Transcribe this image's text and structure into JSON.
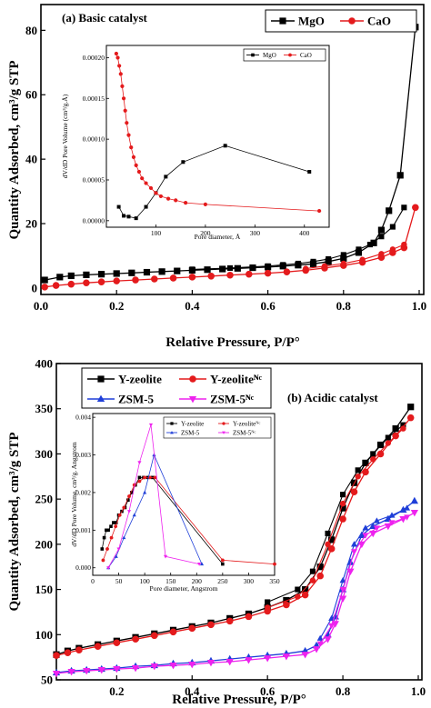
{
  "chart_data": [
    {
      "type": "line",
      "title": "(a) Basic catalyst",
      "xlabel": "Relative Pressure, P/P°",
      "ylabel": "Quantity Adsorbed, cm³/g STP",
      "xlim": [
        0.0,
        1.0
      ],
      "ylim": [
        -2,
        88
      ],
      "x_ticks": [
        "0.0",
        "0.2",
        "0.4",
        "0.6",
        "0.8",
        "1.0"
      ],
      "y_ticks": [
        "0",
        "20",
        "40",
        "60",
        "80"
      ],
      "legend_position": "top-right",
      "series": [
        {
          "name": "MgO",
          "color": "#000000",
          "marker": "square",
          "x": [
            0.01,
            0.05,
            0.08,
            0.12,
            0.16,
            0.2,
            0.24,
            0.28,
            0.32,
            0.36,
            0.4,
            0.44,
            0.48,
            0.52,
            0.56,
            0.6,
            0.64,
            0.68,
            0.72,
            0.76,
            0.8,
            0.84,
            0.88,
            0.9,
            0.92,
            0.95,
            0.99
          ],
          "y": [
            2.5,
            3.4,
            3.8,
            4.1,
            4.3,
            4.5,
            4.7,
            4.9,
            5.1,
            5.3,
            5.5,
            5.7,
            5.9,
            6.1,
            6.3,
            6.5,
            6.8,
            7.1,
            7.5,
            8.2,
            9.2,
            11,
            14,
            18,
            24,
            35,
            81
          ],
          "desorption_x": [
            0.96,
            0.93,
            0.9,
            0.87,
            0.84,
            0.8,
            0.76,
            0.72,
            0.68,
            0.64,
            0.6,
            0.5,
            0.4
          ],
          "desorption_y": [
            25,
            19,
            16,
            13.5,
            12,
            10.3,
            9,
            8.2,
            7.6,
            7.2,
            6.8,
            6.2,
            5.8
          ]
        },
        {
          "name": "CaO",
          "color": "#e41a1c",
          "marker": "circle",
          "x": [
            0.01,
            0.04,
            0.08,
            0.12,
            0.16,
            0.2,
            0.25,
            0.3,
            0.35,
            0.4,
            0.45,
            0.5,
            0.55,
            0.6,
            0.65,
            0.7,
            0.75,
            0.8,
            0.85,
            0.9,
            0.93,
            0.96,
            0.99
          ],
          "y": [
            0.3,
            0.8,
            1.2,
            1.6,
            1.9,
            2.2,
            2.5,
            2.8,
            3.1,
            3.4,
            3.7,
            4.0,
            4.3,
            4.6,
            5.0,
            5.5,
            6.2,
            7.0,
            8.0,
            9.5,
            11,
            12.5,
            25
          ],
          "desorption_x": [
            0.96,
            0.93,
            0.9,
            0.85,
            0.8,
            0.75,
            0.7
          ],
          "desorption_y": [
            13.5,
            12,
            10.6,
            8.8,
            7.6,
            6.8,
            6.0
          ]
        }
      ],
      "inset": {
        "xlabel": "Pore diameter, Å",
        "ylabel": "dV/dD Pore Volume (cm³/g.Å)",
        "xlim": [
          0,
          450
        ],
        "ylim": [
          -8e-06,
          0.000215
        ],
        "x_ticks": [
          "100",
          "200",
          "300",
          "400"
        ],
        "y_ticks": [
          "0.00000",
          "0.00005",
          "0.00010",
          "0.00015",
          "0.00020"
        ],
        "series": [
          {
            "name": "MgO",
            "color": "#000000",
            "marker": "square",
            "x": [
              25,
              35,
              45,
              60,
              80,
              100,
              120,
              155,
              240,
              410
            ],
            "y": [
              1.7e-05,
              6e-06,
              5e-06,
              3e-06,
              1.7e-05,
              3.4e-05,
              5.4e-05,
              7.2e-05,
              9.2e-05,
              6e-05
            ]
          },
          {
            "name": "CaO",
            "color": "#e41a1c",
            "marker": "circle",
            "x": [
              20,
              23,
              26,
              29,
              32,
              35,
              38,
              41,
              45,
              50,
              55,
              60,
              66,
              72,
              80,
              90,
              100,
              110,
              125,
              140,
              160,
              200,
              430
            ],
            "y": [
              0.000205,
              0.0002,
              0.00019,
              0.00018,
              0.000165,
              0.00015,
              0.000135,
              0.00012,
              0.000105,
              9e-05,
              7.8e-05,
              6.8e-05,
              6e-05,
              5.2e-05,
              4.6e-05,
              4e-05,
              3.4e-05,
              3e-05,
              2.7e-05,
              2.5e-05,
              2.2e-05,
              2e-05,
              1.2e-05
            ]
          }
        ]
      }
    },
    {
      "type": "line",
      "title": "(b) Acidic catalyst",
      "xlabel": "Relative Pressure, P/P°",
      "ylabel": "Quantity Adsorbed, cm³/g STP",
      "xlim": [
        0.04,
        1.0
      ],
      "ylim": [
        50,
        400
      ],
      "x_ticks": [
        "0.2",
        "0.4",
        "0.6",
        "0.8",
        "1.0"
      ],
      "y_ticks": [
        "50",
        "100",
        "150",
        "200",
        "250",
        "300",
        "350",
        "400"
      ],
      "legend_position": "top-left",
      "series": [
        {
          "name": "Y-zeolite",
          "color": "#000000",
          "marker": "square",
          "x": [
            0.04,
            0.07,
            0.1,
            0.15,
            0.2,
            0.25,
            0.3,
            0.35,
            0.4,
            0.45,
            0.5,
            0.55,
            0.6,
            0.65,
            0.7,
            0.74,
            0.77,
            0.8,
            0.83,
            0.86,
            0.9,
            0.94,
            0.98
          ],
          "y": [
            78,
            82,
            85,
            89,
            93,
            97,
            101,
            105,
            109,
            113,
            118,
            123,
            130,
            138,
            150,
            175,
            205,
            240,
            268,
            290,
            310,
            328,
            352
          ],
          "desorption_x": [
            0.96,
            0.92,
            0.88,
            0.84,
            0.8,
            0.76,
            0.72,
            0.68,
            0.6
          ],
          "desorption_y": [
            332,
            318,
            300,
            282,
            255,
            212,
            170,
            150,
            136
          ]
        },
        {
          "name": "Y-zeoliteᴺᶜ",
          "color": "#e41a1c",
          "marker": "circle",
          "x": [
            0.04,
            0.07,
            0.1,
            0.15,
            0.2,
            0.25,
            0.3,
            0.35,
            0.4,
            0.45,
            0.5,
            0.55,
            0.6,
            0.65,
            0.7,
            0.74,
            0.77,
            0.8,
            0.83,
            0.86,
            0.9,
            0.94,
            0.98
          ],
          "y": [
            77,
            80,
            83,
            87,
            91,
            95,
            99,
            103,
            107,
            111,
            115,
            120,
            126,
            133,
            144,
            165,
            195,
            228,
            258,
            280,
            300,
            320,
            340
          ],
          "desorption_x": [
            0.96,
            0.92,
            0.88,
            0.84,
            0.8,
            0.76,
            0.72,
            0.68,
            0.6
          ],
          "desorption_y": [
            328,
            312,
            294,
            275,
            245,
            200,
            160,
            142,
            130
          ]
        },
        {
          "name": "ZSM-5",
          "color": "#1f3fd8",
          "marker": "triangle-up",
          "x": [
            0.04,
            0.08,
            0.12,
            0.16,
            0.2,
            0.25,
            0.3,
            0.35,
            0.4,
            0.45,
            0.5,
            0.55,
            0.6,
            0.65,
            0.7,
            0.73,
            0.76,
            0.78,
            0.8,
            0.82,
            0.85,
            0.88,
            0.92,
            0.96,
            0.99
          ],
          "y": [
            58,
            60,
            61,
            62,
            63,
            65,
            66,
            68,
            69,
            71,
            73,
            75,
            77,
            79,
            82,
            88,
            100,
            120,
            150,
            180,
            210,
            220,
            228,
            238,
            248
          ],
          "desorption_x": [
            0.97,
            0.93,
            0.89,
            0.86,
            0.83,
            0.8,
            0.77,
            0.74
          ],
          "desorption_y": [
            240,
            232,
            226,
            218,
            200,
            160,
            118,
            96
          ]
        },
        {
          "name": "ZSM-5ᴺᶜ",
          "color": "#ee22ee",
          "marker": "triangle-down",
          "x": [
            0.04,
            0.08,
            0.12,
            0.16,
            0.2,
            0.25,
            0.3,
            0.35,
            0.4,
            0.45,
            0.5,
            0.55,
            0.6,
            0.65,
            0.7,
            0.73,
            0.76,
            0.78,
            0.8,
            0.82,
            0.85,
            0.88,
            0.92,
            0.96,
            0.99
          ],
          "y": [
            57,
            59,
            60,
            61,
            62,
            63,
            65,
            66,
            67,
            69,
            70,
            72,
            74,
            76,
            78,
            84,
            95,
            112,
            140,
            170,
            200,
            212,
            220,
            228,
            235
          ],
          "desorption_x": [
            0.97,
            0.93,
            0.89,
            0.86,
            0.83,
            0.8,
            0.77,
            0.74
          ],
          "desorption_y": [
            230,
            224,
            218,
            210,
            192,
            150,
            110,
            90
          ]
        }
      ],
      "inset": {
        "xlabel": "Pore diameter, Angstrom",
        "ylabel": "dV/dD Pore Volume, cm³/g. Angstrom",
        "xlim": [
          0,
          350
        ],
        "ylim": [
          -0.0002,
          0.0041
        ],
        "x_ticks": [
          "0",
          "50",
          "100",
          "150",
          "200",
          "250",
          "300",
          "350"
        ],
        "y_ticks": [
          "0.000",
          "0.001",
          "0.002",
          "0.003",
          "0.004"
        ],
        "series": [
          {
            "name": "Y-zeolite",
            "color": "#000000",
            "marker": "square",
            "x": [
              18,
              22,
              26,
              30,
              35,
              40,
              45,
              50,
              56,
              62,
              68,
              75,
              82,
              90,
              98,
              106,
              115,
              250
            ],
            "y": [
              0.0005,
              0.0008,
              0.001,
              0.001,
              0.0011,
              0.0012,
              0.0012,
              0.0014,
              0.0015,
              0.0016,
              0.0018,
              0.002,
              0.0022,
              0.0024,
              0.0024,
              0.0024,
              0.0024,
              0.0001
            ]
          },
          {
            "name": "Y-zeoliteᴺᶜ",
            "color": "#e41a1c",
            "marker": "circle",
            "x": [
              20,
              28,
              36,
              44,
              52,
              60,
              70,
              80,
              90,
              100,
              110,
              120,
              250,
              350
            ],
            "y": [
              0.0002,
              0.0005,
              0.0008,
              0.0011,
              0.0014,
              0.0016,
              0.0019,
              0.0022,
              0.0023,
              0.0024,
              0.0024,
              0.0024,
              0.0002,
              0.0001
            ]
          },
          {
            "name": "ZSM-5",
            "color": "#1f3fd8",
            "marker": "triangle-up",
            "x": [
              30,
              45,
              60,
              80,
              100,
              118,
              210
            ],
            "y": [
              0.0,
              0.0003,
              0.0008,
              0.0014,
              0.002,
              0.003,
              0.0001
            ]
          },
          {
            "name": "ZSM-5ᴺᶜ",
            "color": "#ee22ee",
            "marker": "triangle-down",
            "x": [
              30,
              50,
              70,
              90,
              112,
              140,
              205
            ],
            "y": [
              0.0,
              0.0005,
              0.0015,
              0.0028,
              0.0038,
              0.0003,
              0.0001
            ]
          }
        ]
      }
    }
  ]
}
